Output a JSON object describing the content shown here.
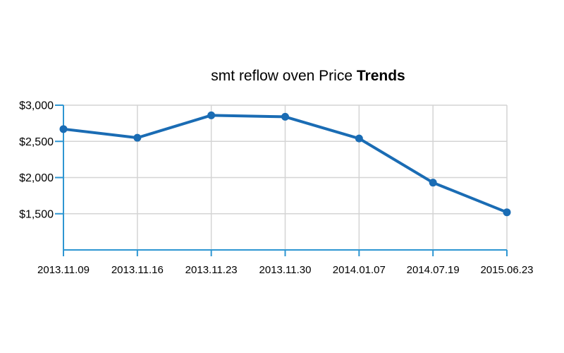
{
  "chart_data": {
    "type": "line",
    "title": "smt reflow oven Price Trends",
    "title_regular": "smt reflow oven Price ",
    "title_bold": "Trends",
    "xlabel": "",
    "ylabel": "",
    "categories": [
      "2013.11.09",
      "2013.11.16",
      "2013.11.23",
      "2013.11.30",
      "2014.01.07",
      "2014.07.19",
      "2015.06.23"
    ],
    "series": [
      {
        "name": "Price",
        "values": [
          2670,
          2550,
          2860,
          2840,
          2540,
          1930,
          1520
        ]
      }
    ],
    "ylim": [
      1000,
      3000
    ],
    "y_ticks": [
      {
        "value": 3000,
        "label": "$3,000"
      },
      {
        "value": 2500,
        "label": "$2,500"
      },
      {
        "value": 2000,
        "label": "$2,000"
      },
      {
        "value": 1500,
        "label": "$1,500"
      }
    ],
    "grid": true,
    "legend": false,
    "colors": {
      "line": "#1a6cb4",
      "axis": "#2e96d2",
      "grid": "#d4d4d4",
      "text": "#000000"
    }
  }
}
